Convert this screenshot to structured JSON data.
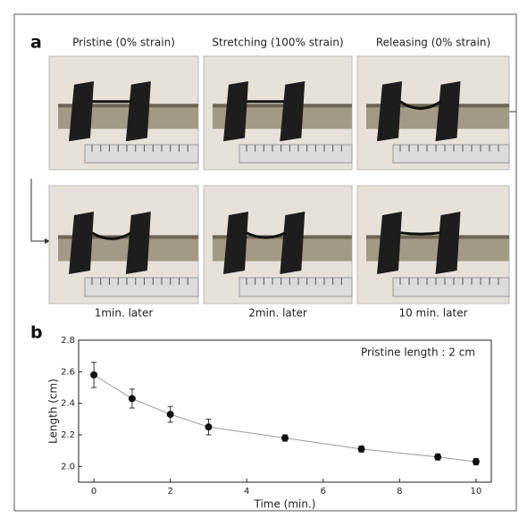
{
  "panel_a": {
    "label": "a",
    "captions_top": [
      "Pristine (0% strain)",
      "Stretching (100% strain)",
      "Releasing (0% strain)"
    ],
    "captions_bottom": [
      "1min. later",
      "2min. later",
      "10 min. later"
    ]
  },
  "panel_b": {
    "label": "b"
  },
  "chart_data": {
    "type": "line",
    "annotation": "Pristine length : 2 cm",
    "xlabel": "Time (min.)",
    "ylabel": "Length (cm)",
    "x": [
      0,
      1,
      2,
      3,
      5,
      7,
      9,
      10
    ],
    "values": [
      2.58,
      2.43,
      2.33,
      2.25,
      2.18,
      2.11,
      2.06,
      2.03
    ],
    "errors": [
      0.08,
      0.06,
      0.05,
      0.05,
      0.02,
      0.02,
      0.02,
      0.02
    ],
    "color": "#999999",
    "marker_color": "#111111",
    "xlim": [
      -0.4,
      10.4
    ],
    "xticks": [
      0,
      2,
      4,
      6,
      8,
      10
    ],
    "ylim": [
      1.9,
      2.8
    ],
    "yticks": [
      {
        "value": 2,
        "label": "2.0"
      },
      2.2,
      2.4,
      2.6,
      2.8
    ]
  }
}
